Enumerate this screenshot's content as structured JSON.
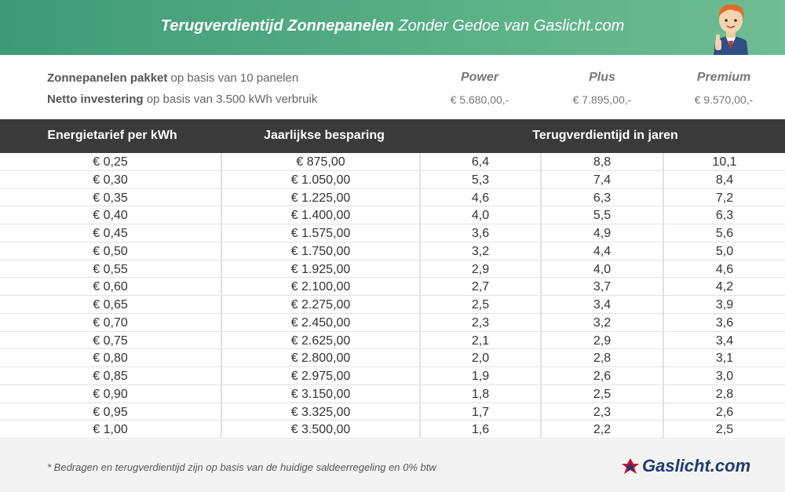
{
  "header": {
    "title_bold": "Terugverdientijd Zonnepanelen",
    "title_rest": "Zonder Gedoe van Gaslicht.com"
  },
  "info": {
    "line1_bold": "Zonnepanelen pakket",
    "line1_rest": "op basis van 10 panelen",
    "line2_bold": "Netto investering",
    "line2_rest": "op basis van 3.500 kWh verbruik"
  },
  "packages": [
    {
      "name": "Power",
      "price": "€ 5.680,00,-"
    },
    {
      "name": "Plus",
      "price": "€ 7.895,00,-"
    },
    {
      "name": "Premium",
      "price": "€ 9.570,00,-"
    }
  ],
  "table": {
    "headers": {
      "tariff": "Energietarief per kWh",
      "savings": "Jaarlijkse besparing",
      "payback": "Terugverdientijd in jaren"
    },
    "rows": [
      [
        "€ 0,25",
        "€ 875,00",
        "6,4",
        "8,8",
        "10,1"
      ],
      [
        "€ 0,30",
        "€ 1.050,00",
        "5,3",
        "7,4",
        "8,4"
      ],
      [
        "€ 0,35",
        "€ 1.225,00",
        "4,6",
        "6,3",
        "7,2"
      ],
      [
        "€ 0,40",
        "€ 1.400,00",
        "4,0",
        "5,5",
        "6,3"
      ],
      [
        "€ 0,45",
        "€ 1.575,00",
        "3,6",
        "4,9",
        "5,6"
      ],
      [
        "€ 0,50",
        "€ 1.750,00",
        "3,2",
        "4,4",
        "5,0"
      ],
      [
        "€ 0,55",
        "€ 1.925,00",
        "2,9",
        "4,0",
        "4,6"
      ],
      [
        "€ 0,60",
        "€ 2.100,00",
        "2,7",
        "3,7",
        "4,2"
      ],
      [
        "€ 0,65",
        "€ 2.275,00",
        "2,5",
        "3,4",
        "3,9"
      ],
      [
        "€ 0,70",
        "€ 2.450,00",
        "2,3",
        "3,2",
        "3,6"
      ],
      [
        "€ 0,75",
        "€ 2.625,00",
        "2,1",
        "2,9",
        "3,4"
      ],
      [
        "€ 0,80",
        "€ 2.800,00",
        "2,0",
        "2,8",
        "3,1"
      ],
      [
        "€ 0,85",
        "€ 2.975,00",
        "1,9",
        "2,6",
        "3,0"
      ],
      [
        "€ 0,90",
        "€ 3.150,00",
        "1,8",
        "2,5",
        "2,8"
      ],
      [
        "€ 0,95",
        "€ 3.325,00",
        "1,7",
        "2,3",
        "2,6"
      ],
      [
        "€ 1,00",
        "€ 3.500,00",
        "1,6",
        "2,2",
        "2,5"
      ]
    ]
  },
  "footer": {
    "note": "* Bedragen en terugverdientijd zijn op basis van de huidige saldeerregeling en 0% btw",
    "logo_text": "Gaslicht.com"
  },
  "colors": {
    "header_green": "#55ad84",
    "table_header": "#3a3a3a",
    "logo_blue": "#1f3b6e",
    "logo_red": "#c8102e"
  }
}
